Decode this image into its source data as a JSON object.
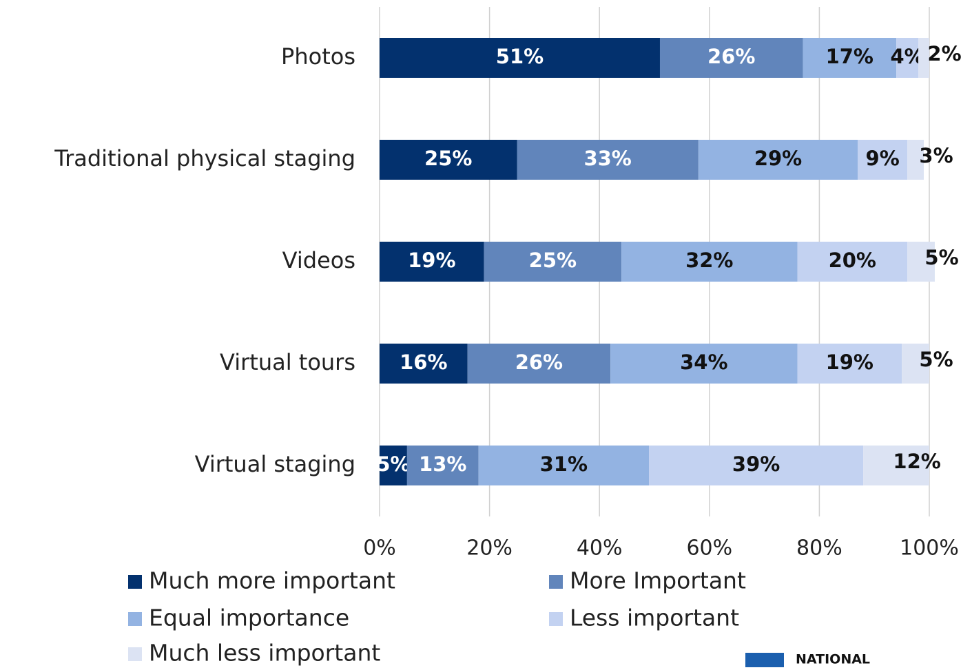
{
  "chart_data": {
    "type": "stacked_bar_horizontal",
    "categories": [
      "Photos",
      "Traditional physical staging",
      "Videos",
      "Virtual tours",
      "Virtual staging"
    ],
    "series": [
      {
        "name": "Much more important",
        "color": "#03316e",
        "values": [
          51,
          25,
          19,
          16,
          5
        ],
        "value_labels": [
          "51%",
          "25%",
          "19%",
          "16%",
          "5%"
        ]
      },
      {
        "name": "More Important",
        "color": "#6185bb",
        "values": [
          26,
          33,
          25,
          26,
          13
        ],
        "value_labels": [
          "26%",
          "33%",
          "25%",
          "26%",
          "13%"
        ]
      },
      {
        "name": "Equal importance",
        "color": "#93b3e2",
        "values": [
          17,
          29,
          32,
          34,
          31
        ],
        "value_labels": [
          "17%",
          "29%",
          "32%",
          "34%",
          "31%"
        ]
      },
      {
        "name": "Less important",
        "color": "#c3d2f1",
        "values": [
          4,
          9,
          20,
          19,
          39
        ],
        "value_labels": [
          "4%",
          "9%",
          "20%",
          "19%",
          "39%"
        ]
      },
      {
        "name": "Much less important",
        "color": "#dce3f3",
        "values": [
          2,
          3,
          5,
          5,
          12
        ],
        "value_labels": [
          "2%",
          "3%",
          "5%",
          "5%",
          "12%"
        ]
      }
    ],
    "xlim": [
      0,
      100
    ],
    "xticks": [
      {
        "value": 0,
        "label": "0%"
      },
      {
        "value": 20,
        "label": "20%"
      },
      {
        "value": 40,
        "label": "40%"
      },
      {
        "value": 60,
        "label": "60%"
      },
      {
        "value": 80,
        "label": "80%"
      },
      {
        "value": 100,
        "label": "100%"
      }
    ],
    "grid": true,
    "legend": "bottom",
    "logo": "NATIONAL"
  }
}
